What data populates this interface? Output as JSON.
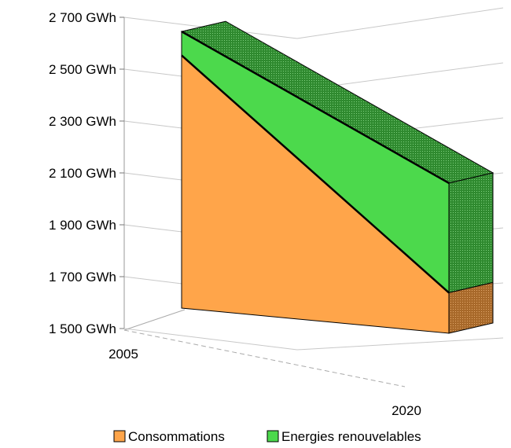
{
  "chart_data": {
    "type": "area",
    "view": "3d-stacked",
    "x": [
      "2005",
      "2020"
    ],
    "y_ticks": [
      "1 500 GWh",
      "1 700 GWh",
      "1 900 GWh",
      "2 100 GWh",
      "2 300 GWh",
      "2 500 GWh",
      "2 700 GWh"
    ],
    "ylim": [
      1500,
      2700
    ],
    "grid": true,
    "legend_position": "bottom",
    "series": [
      {
        "name": "Consommations",
        "values": [
          2560,
          1670
        ],
        "color": "#ffa54a"
      },
      {
        "name": "Energies renouvelables",
        "values": [
          2660,
          2130
        ],
        "color": "#4cd94c"
      }
    ]
  }
}
